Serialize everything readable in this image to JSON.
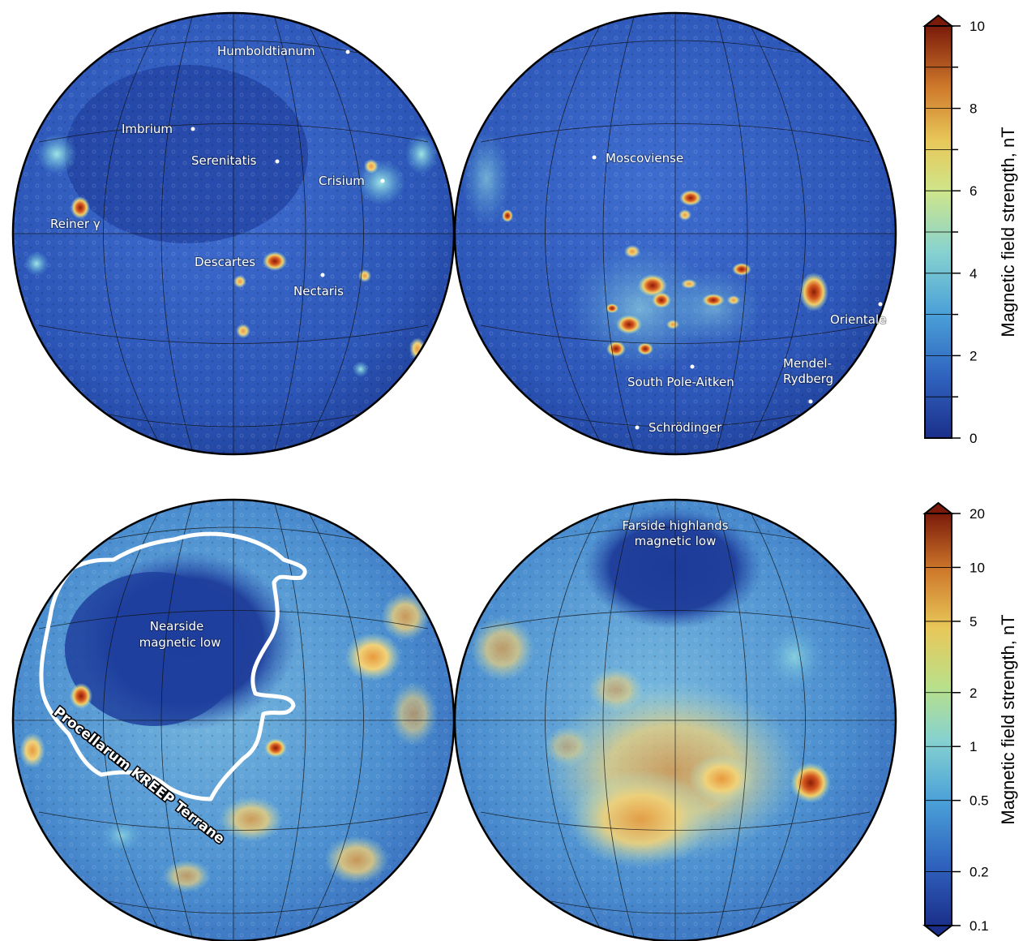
{
  "colorbars": {
    "top": {
      "title": "Magnetic field strength, nT",
      "scale": "linear",
      "ticks": [
        "0",
        "2",
        "4",
        "6",
        "8",
        "10"
      ],
      "tick_values": [
        0,
        2,
        4,
        6,
        8,
        10
      ],
      "range": [
        0,
        10
      ]
    },
    "bottom": {
      "title": "Magnetic field strength, nT",
      "scale": "log",
      "ticks": [
        "0.1",
        "0.2",
        "0.5",
        "1",
        "2",
        "5",
        "10",
        "20"
      ],
      "tick_values": [
        0.1,
        0.2,
        0.5,
        1,
        2,
        5,
        10,
        20
      ],
      "range": [
        0.1,
        20
      ]
    }
  },
  "colors": {
    "low": "#1f3f9a",
    "mid_low": "#3d8fcf",
    "mid": "#7fd0d6",
    "mid_high": "#e9d77a",
    "high": "#d06c2a",
    "max": "#7a1a0a",
    "annotation": "#ffffff"
  },
  "maps": {
    "top_nearside": {
      "labels": [
        "Humboldtianum",
        "Imbrium",
        "Serenitatis",
        "Crisium",
        "Reiner γ",
        "Descartes",
        "Nectaris"
      ]
    },
    "top_farside": {
      "labels": [
        "Moscoviense",
        "Orientale",
        "Mendel-",
        "Rydberg",
        "South Pole-Aitken",
        "Schrödinger"
      ]
    },
    "bottom_nearside": {
      "labels": [
        "Nearside",
        "magnetic low",
        "Procellarum KREEP Terrane"
      ]
    },
    "bottom_farside": {
      "labels": [
        "Farside highlands",
        "magnetic low"
      ]
    }
  }
}
